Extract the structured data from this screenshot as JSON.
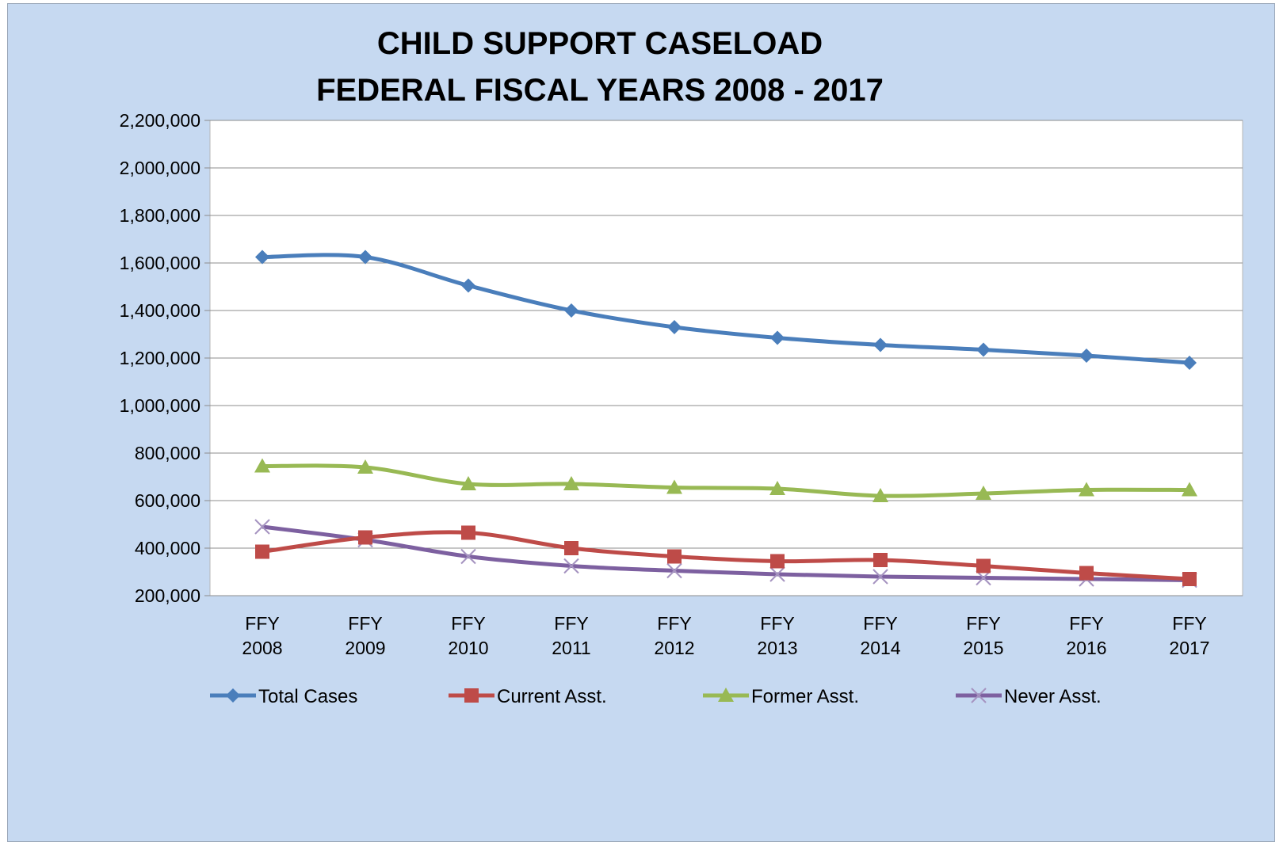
{
  "chart_data": {
    "type": "line",
    "title": [
      "CHILD SUPPORT CASELOAD",
      "FEDERAL FISCAL YEARS 2008 - 2017"
    ],
    "categories": [
      [
        "FFY",
        "2008"
      ],
      [
        "FFY",
        "2009"
      ],
      [
        "FFY",
        "2010"
      ],
      [
        "FFY",
        "2011"
      ],
      [
        "FFY",
        "2012"
      ],
      [
        "FFY",
        "2013"
      ],
      [
        "FFY",
        "2014"
      ],
      [
        "FFY",
        "2015"
      ],
      [
        "FFY",
        "2016"
      ],
      [
        "FFY",
        "2017"
      ]
    ],
    "ylim": [
      200000,
      2200000
    ],
    "yticks": [
      200000,
      400000,
      600000,
      800000,
      1000000,
      1200000,
      1400000,
      1600000,
      1800000,
      2000000,
      2200000
    ],
    "ytick_labels": [
      "200,000",
      "400,000",
      "600,000",
      "800,000",
      "1,000,000",
      "1,200,000",
      "1,400,000",
      "1,600,000",
      "1,800,000",
      "2,000,000",
      "2,200,000"
    ],
    "grid": true,
    "legend_position": "bottom",
    "series": [
      {
        "name": "Total Cases",
        "color": "#4a7ebb",
        "marker": "diamond",
        "values": [
          1625000,
          1625000,
          1505000,
          1400000,
          1330000,
          1285000,
          1255000,
          1235000,
          1210000,
          1180000
        ]
      },
      {
        "name": "Current Asst.",
        "color": "#be4b48",
        "marker": "square",
        "values": [
          385000,
          445000,
          465000,
          400000,
          365000,
          345000,
          350000,
          325000,
          295000,
          270000
        ]
      },
      {
        "name": "Former Asst.",
        "color": "#98b954",
        "marker": "triangle",
        "values": [
          745000,
          740000,
          670000,
          670000,
          655000,
          650000,
          620000,
          630000,
          645000,
          645000
        ]
      },
      {
        "name": "Never Asst.",
        "color": "#7d60a0",
        "marker": "x",
        "values": [
          490000,
          435000,
          365000,
          325000,
          305000,
          290000,
          280000,
          275000,
          270000,
          265000
        ]
      }
    ]
  }
}
